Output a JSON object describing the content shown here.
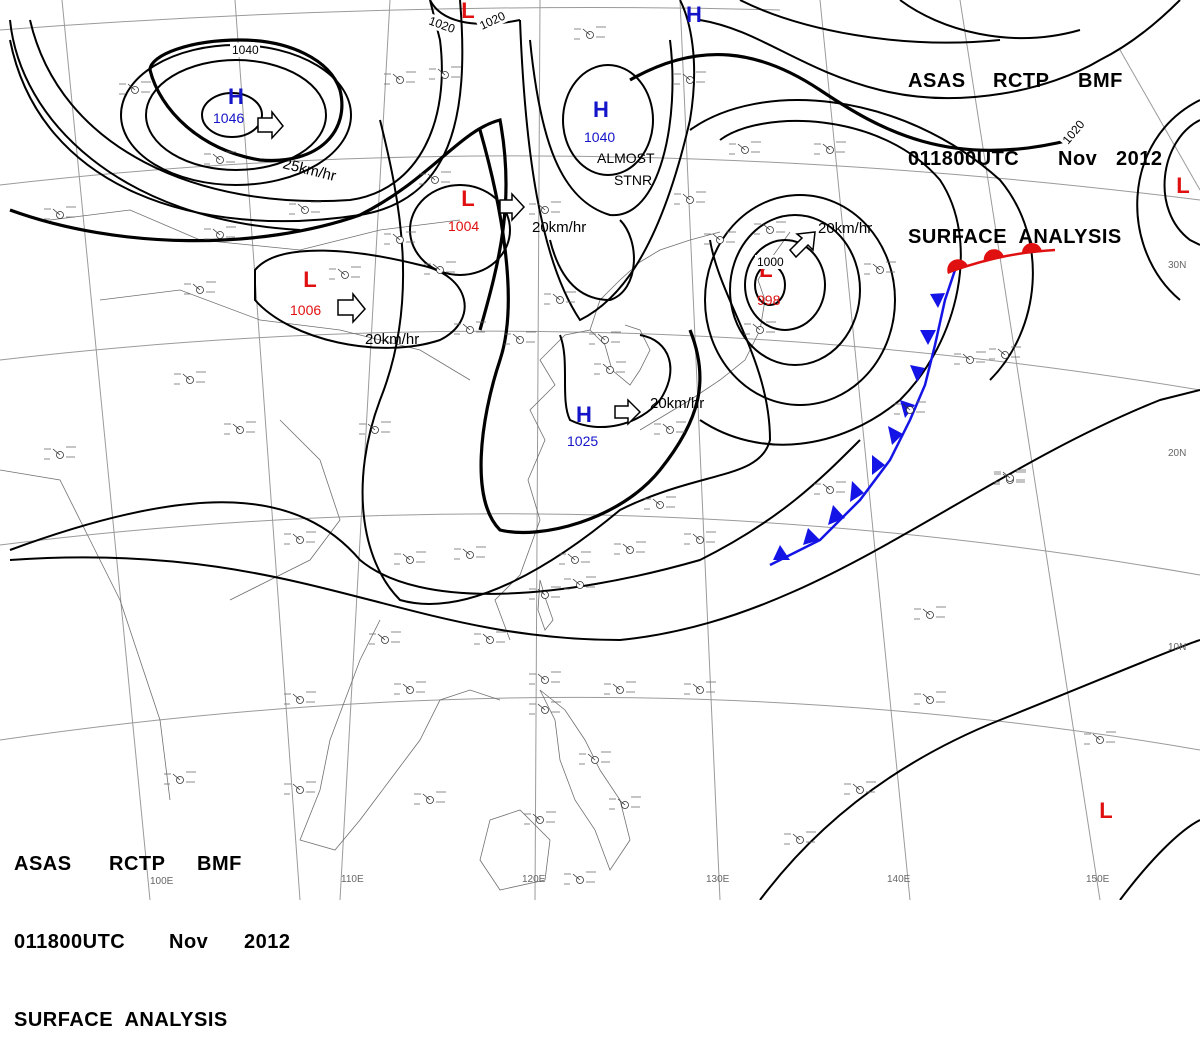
{
  "header": {
    "line1": [
      "ASAS",
      "RCTP",
      "BMF"
    ],
    "line2": [
      "011800UTC",
      "Nov",
      "2012"
    ],
    "line3": "SURFACE  ANALYSIS"
  },
  "pressure_centers": [
    {
      "type": "H",
      "value": "1046"
    },
    {
      "type": "H",
      "value": "1040"
    },
    {
      "type": "H",
      "value": "1025"
    },
    {
      "type": "L",
      "value": "1004"
    },
    {
      "type": "L",
      "value": "1006"
    },
    {
      "type": "L",
      "value": "998"
    },
    {
      "type": "L",
      "value": ""
    },
    {
      "type": "L",
      "value": ""
    },
    {
      "type": "L",
      "value": ""
    },
    {
      "type": "H",
      "value": ""
    }
  ],
  "motion_labels": [
    "25km/hr",
    "20km/hr",
    "20km/hr",
    "20km/hr",
    "20km/hr"
  ],
  "annotations": [
    "ALMOST",
    "STNR"
  ],
  "isobar_labels": [
    "1040",
    "1020",
    "1020",
    "1020",
    "1000"
  ],
  "longitude_labels": [
    "110E",
    "120E",
    "130E",
    "140E",
    "150E",
    "100E"
  ],
  "latitude_labels": [
    "30N",
    "20N",
    "10N"
  ],
  "colors": {
    "high": "#1414c8",
    "low": "#e01010",
    "cold_front": "#1414e6",
    "warm_front": "#e01010",
    "isobar": "#000000",
    "grid": "#9a9a9a",
    "coast": "#707070"
  }
}
